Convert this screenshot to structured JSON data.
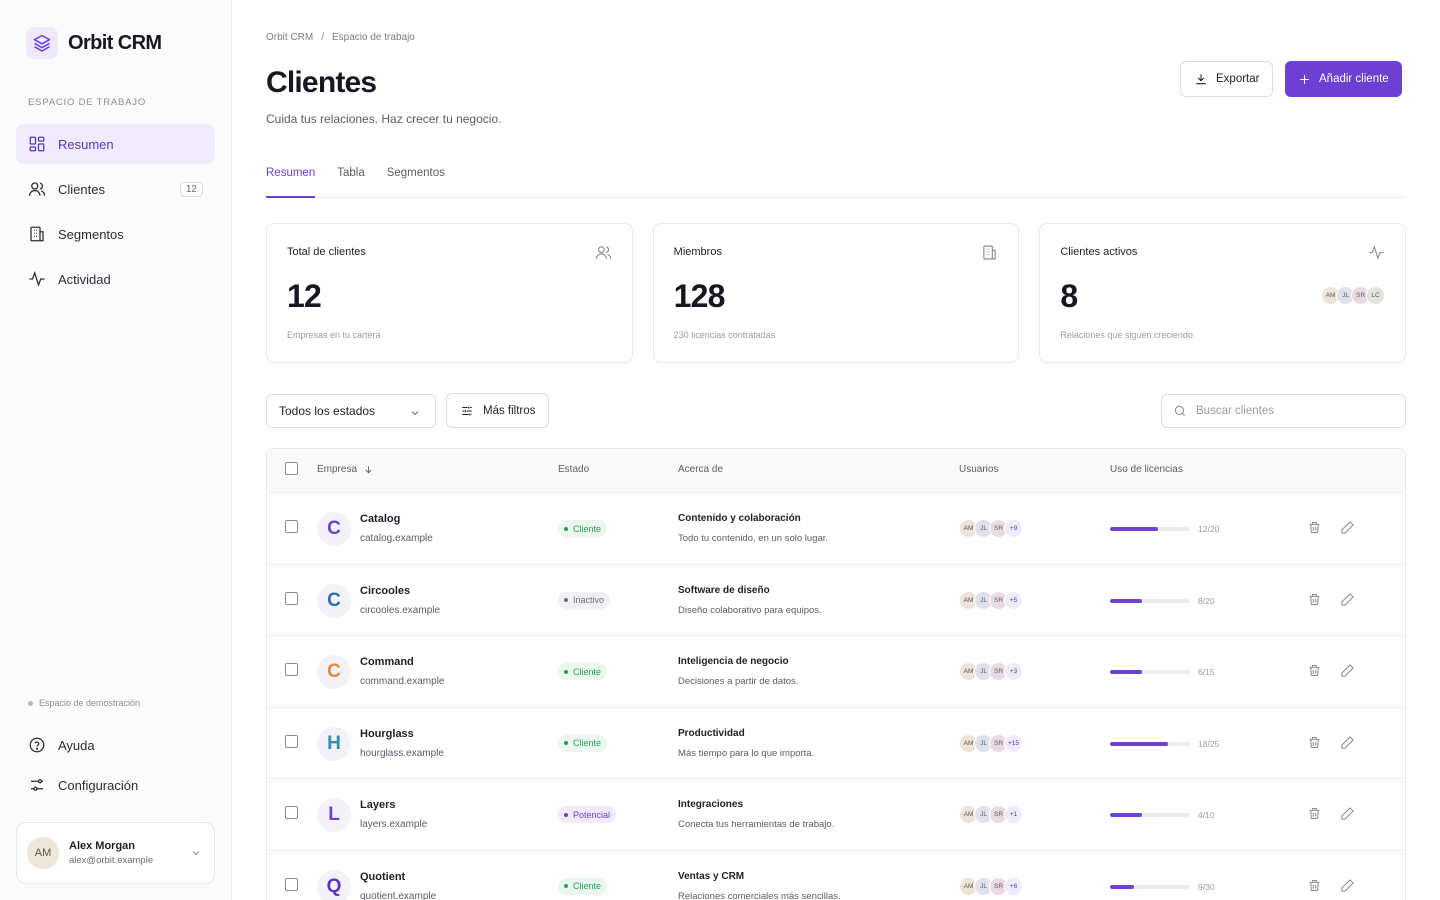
{
  "app": {
    "name": "Orbit CRM"
  },
  "sidebar": {
    "section_label": "ESPACIO DE TRABAJO",
    "items": [
      {
        "label": "Resumen",
        "icon": "dashboard-icon"
      },
      {
        "label": "Clientes",
        "icon": "users-icon",
        "count": "12"
      },
      {
        "label": "Segmentos",
        "icon": "building-icon"
      },
      {
        "label": "Actividad",
        "icon": "activity-icon"
      }
    ],
    "demo_note": "Espacio de demostración",
    "bottom_items": [
      {
        "label": "Ayuda",
        "icon": "help-icon"
      },
      {
        "label": "Configuración",
        "icon": "sliders-icon"
      }
    ],
    "user": {
      "initials": "AM",
      "name": "Alex Morgan",
      "email": "alex@orbit.example"
    }
  },
  "header": {
    "breadcrumb": [
      "Orbit CRM",
      "Espacio de trabajo"
    ],
    "title": "Clientes",
    "subtitle": "Cuida tus relaciones. Haz crecer tu negocio.",
    "export_label": "Exportar",
    "add_label": "Añadir cliente"
  },
  "tabs": [
    "Resumen",
    "Tabla",
    "Segmentos"
  ],
  "stats": [
    {
      "label": "Total de clientes",
      "value": "12",
      "note": "Empresas en tu cartera",
      "icon": "users-icon"
    },
    {
      "label": "Miembros",
      "value": "128",
      "note": "230 licencias contratadas",
      "icon": "building-icon"
    },
    {
      "label": "Clientes activos",
      "value": "8",
      "note": "Relaciones que siguen creciendo",
      "icon": "activity-icon",
      "avatars": [
        "AM",
        "JL",
        "SR",
        "LC"
      ]
    }
  ],
  "filters": {
    "status_select": "Todos los estados",
    "more_filters": "Más filtros",
    "search_placeholder": "Buscar clientes"
  },
  "table": {
    "columns": [
      "Empresa",
      "Estado",
      "Acerca de",
      "Usuarios",
      "Uso de licencias"
    ],
    "rows": [
      {
        "letter": "C",
        "color": "#6d3fd3",
        "name": "Catalog",
        "domain": "catalog.example",
        "status": "Cliente",
        "status_kind": "client",
        "about_title": "Contenido y colaboración",
        "about_desc": "Todo tu contenido, en un solo lugar.",
        "users": [
          "AM",
          "JL",
          "SR"
        ],
        "more": "+9",
        "used": 12,
        "total": 20,
        "usage": "12/20"
      },
      {
        "letter": "C",
        "color": "#2f6fb0",
        "name": "Circooles",
        "domain": "circooles.example",
        "status": "Inactivo",
        "status_kind": "inactive",
        "about_title": "Software de diseño",
        "about_desc": "Diseño colaborativo para equipos.",
        "users": [
          "AM",
          "JL",
          "SR"
        ],
        "more": "+5",
        "used": 8,
        "total": 20,
        "usage": "8/20"
      },
      {
        "letter": "C",
        "color": "#e08a3c",
        "name": "Command",
        "domain": "command.example",
        "status": "Cliente",
        "status_kind": "client",
        "about_title": "Inteligencia de negocio",
        "about_desc": "Decisiones a partir de datos.",
        "users": [
          "AM",
          "JL",
          "SR"
        ],
        "more": "+3",
        "used": 6,
        "total": 15,
        "usage": "6/15"
      },
      {
        "letter": "H",
        "color": "#2f8fb0",
        "name": "Hourglass",
        "domain": "hourglass.example",
        "status": "Cliente",
        "status_kind": "client",
        "about_title": "Productividad",
        "about_desc": "Más tiempo para lo que importa.",
        "users": [
          "AM",
          "JL",
          "SR"
        ],
        "more": "+15",
        "used": 18,
        "total": 25,
        "usage": "18/25"
      },
      {
        "letter": "L",
        "color": "#6d3fd3",
        "name": "Layers",
        "domain": "layers.example",
        "status": "Potencial",
        "status_kind": "lead",
        "about_title": "Integraciones",
        "about_desc": "Conecta tus herramientas de trabajo.",
        "users": [
          "AM",
          "JL",
          "SR"
        ],
        "more": "+1",
        "used": 4,
        "total": 10,
        "usage": "4/10"
      },
      {
        "letter": "Q",
        "color": "#5b33c2",
        "name": "Quotient",
        "domain": "quotient.example",
        "status": "Cliente",
        "status_kind": "client",
        "about_title": "Ventas y CRM",
        "about_desc": "Relaciones comerciales más sencillas.",
        "users": [
          "AM",
          "JL",
          "SR"
        ],
        "more": "+6",
        "used": 9,
        "total": 30,
        "usage": "9/30"
      }
    ]
  },
  "colors": {
    "accent": "#6d3fd3",
    "client": "#27a05a",
    "inactive": "#8b8b98",
    "lead": "#6d3fd3"
  }
}
